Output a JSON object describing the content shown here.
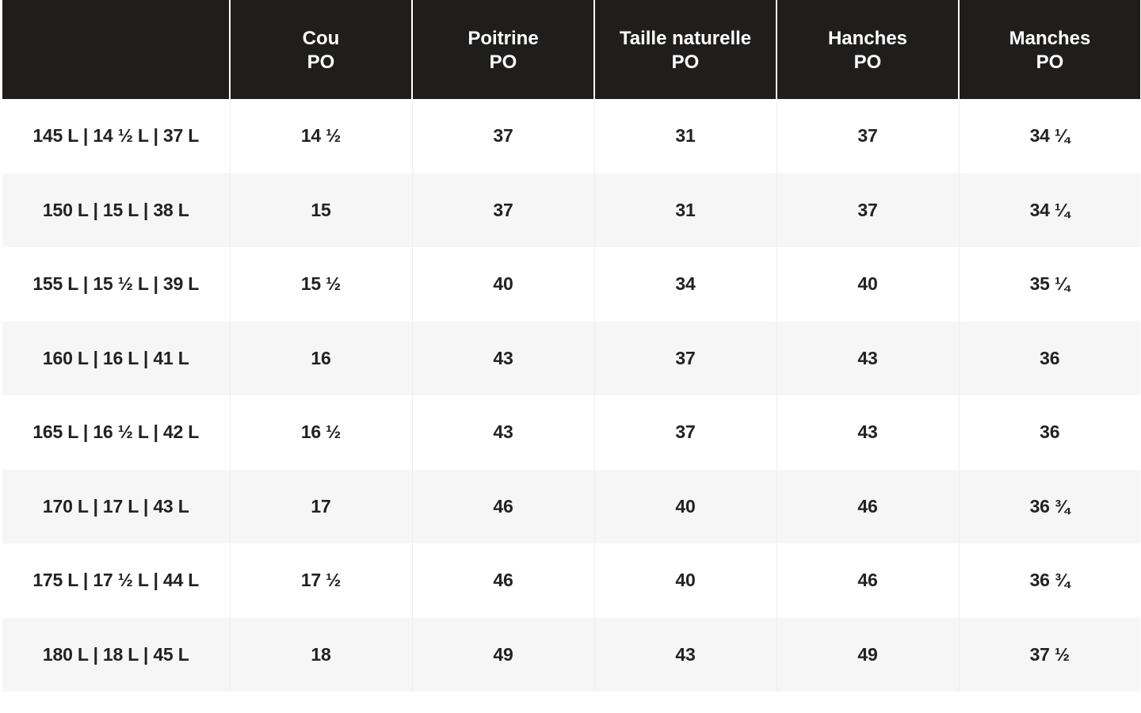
{
  "table": {
    "header": [
      {
        "line1": "",
        "line2": ""
      },
      {
        "line1": "Cou",
        "line2": "PO"
      },
      {
        "line1": "Poitrine",
        "line2": "PO"
      },
      {
        "line1": "Taille naturelle",
        "line2": "PO"
      },
      {
        "line1": "Hanches",
        "line2": "PO"
      },
      {
        "line1": "Manches",
        "line2": "PO"
      }
    ],
    "rows": [
      [
        "145 L | 14 ½ L | 37 L",
        "14 ½",
        "37",
        "31",
        "37",
        "34 ¼"
      ],
      [
        "150 L | 15 L | 38 L",
        "15",
        "37",
        "31",
        "37",
        "34 ¼"
      ],
      [
        "155 L | 15 ½ L | 39 L",
        "15 ½",
        "40",
        "34",
        "40",
        "35 ¼"
      ],
      [
        "160 L | 16 L | 41 L",
        "16",
        "43",
        "37",
        "43",
        "36"
      ],
      [
        "165 L | 16 ½ L | 42 L",
        "16 ½",
        "43",
        "37",
        "43",
        "36"
      ],
      [
        "170 L | 17 L | 43 L",
        "17",
        "46",
        "40",
        "46",
        "36 ¾"
      ],
      [
        "175 L | 17 ½ L | 44 L",
        "17 ½",
        "46",
        "40",
        "46",
        "36 ¾"
      ],
      [
        "180 L | 18 L | 45 L",
        "18",
        "49",
        "43",
        "49",
        "37 ½"
      ]
    ]
  },
  "colors": {
    "header_bg": "#1f1e1d",
    "header_text": "#ffffff",
    "cell_text": "#222222",
    "row_stripe": "#f6f6f6"
  }
}
